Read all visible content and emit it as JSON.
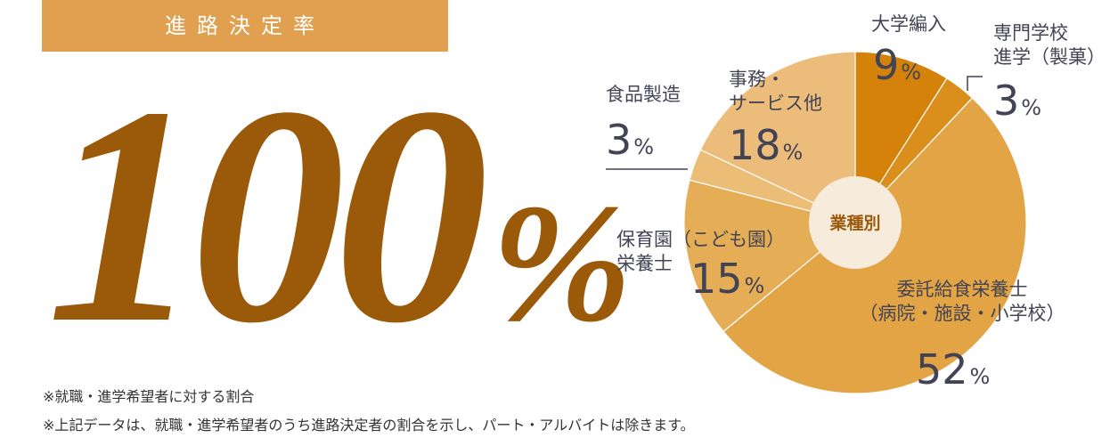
{
  "header": {
    "title": "進路決定率"
  },
  "headline": {
    "value": 100,
    "unit": "%"
  },
  "chart_data": {
    "type": "pie",
    "center_label": "業種別",
    "categories": [
      "大学編入",
      "専門学校\n進学（製菓）",
      "委託給食栄養士\n（病院・施設・小学校）",
      "保育園（こども園）\n栄養士",
      "食品製造",
      "事務・\nサービス他"
    ],
    "values": [
      9,
      3,
      52,
      15,
      3,
      18
    ],
    "colors": [
      "#d4820a",
      "#da8e1c",
      "#e2a444",
      "#e5ad55",
      "#ebbd76",
      "#ecbd7a"
    ],
    "value_unit": "%"
  },
  "notes": [
    "※就職・進学希望者に対する割合",
    "※上記データは、就職・進学希望者のうち進路決定者の割合を示し、パート・アルバイトは除きます。"
  ]
}
